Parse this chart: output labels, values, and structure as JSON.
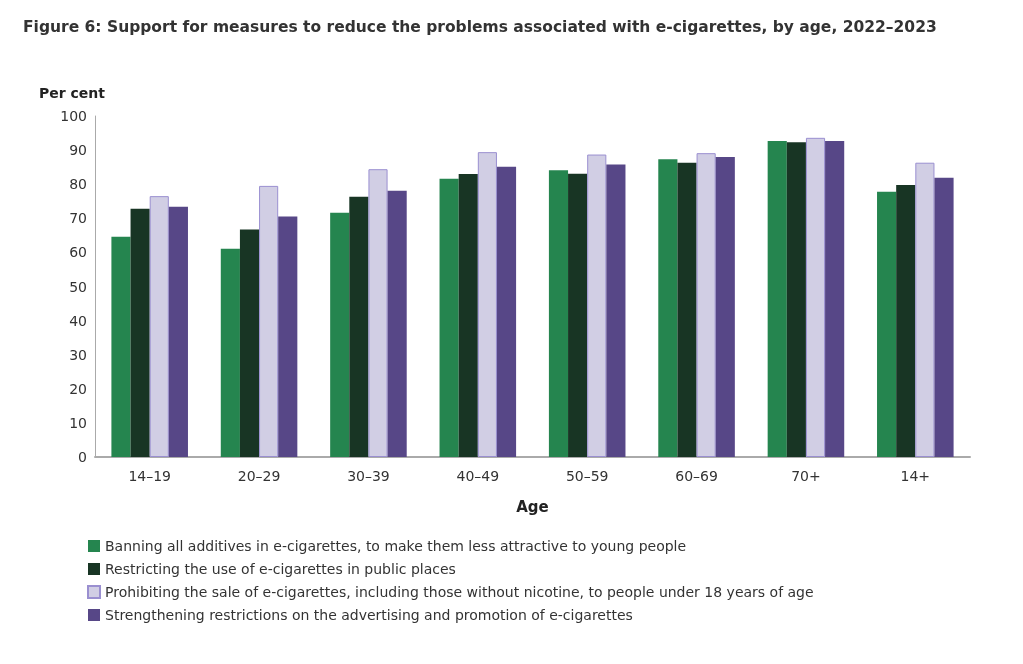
{
  "chart_data": {
    "type": "bar",
    "title": "Figure 6: Support for measures to reduce the problems associated with e-cigarettes, by age, 2022–2023",
    "xlabel": "Age",
    "ylabel": "Per cent",
    "categories": [
      "14–19",
      "20–29",
      "30–39",
      "40–49",
      "50–59",
      "60–69",
      "70+",
      "14+"
    ],
    "series": [
      {
        "name": "Banning all additives in e-cigarettes, to make them less attractive to young people",
        "color": "#25854f",
        "values": [
          64.6,
          61.1,
          71.6,
          81.6,
          84.1,
          87.3,
          92.7,
          77.8
        ]
      },
      {
        "name": "Restricting the use of e-cigarettes in public places",
        "color": "#183524",
        "values": [
          72.8,
          66.7,
          76.3,
          83.0,
          83.1,
          86.3,
          92.3,
          79.8
        ]
      },
      {
        "name": "Prohibiting the sale of e-cigarettes, including those without nicotine, to people under 18 years of age",
        "color": "#d1cee4",
        "values": [
          76.5,
          79.5,
          84.4,
          89.4,
          88.7,
          89.1,
          93.6,
          86.3
        ]
      },
      {
        "name": "Strengthening restrictions on the advertising and promotion of e-cigarettes",
        "color": "#574787",
        "values": [
          73.4,
          70.5,
          78.1,
          85.1,
          85.8,
          88.0,
          92.7,
          81.9
        ]
      }
    ],
    "ylim": [
      0,
      100
    ],
    "yticks": [
      0,
      10,
      20,
      30,
      40,
      50,
      60,
      70,
      80,
      90,
      100
    ],
    "grid": false,
    "legend": "bottom"
  }
}
